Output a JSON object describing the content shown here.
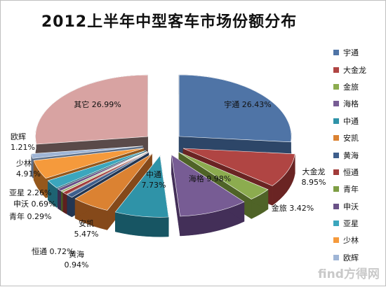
{
  "chart_data": {
    "type": "pie",
    "title": "2012上半年中型客车市场份额分布",
    "slices": [
      {
        "name": "宇通",
        "value": 26.43,
        "label_name": "宇通",
        "label_value": "26.43%",
        "color": "#4f74a6",
        "dark": "#2d4668"
      },
      {
        "name": "大金龙",
        "value": 8.95,
        "label_name": "大金龙",
        "label_value": "8.95%",
        "color": "#b04543",
        "dark": "#6a2423"
      },
      {
        "name": "金旅",
        "value": 3.42,
        "label_name": "金旅",
        "label_value": "3.42%",
        "color": "#8cac4f",
        "dark": "#4f6327"
      },
      {
        "name": "海格",
        "value": 9.98,
        "label_name": "海格",
        "label_value": "9.98%",
        "color": "#775c94",
        "dark": "#432f58"
      },
      {
        "name": "中通",
        "value": 7.73,
        "label_name": "中通",
        "label_value": "7.73%",
        "color": "#2f93a8",
        "dark": "#175563"
      },
      {
        "name": "安凯",
        "value": 5.47,
        "label_name": "安凯",
        "label_value": "5.47%",
        "color": "#db8232",
        "dark": "#85491a"
      },
      {
        "name": "黄海",
        "value": 0.94,
        "label_name": "黄海",
        "label_value": "0.94%",
        "color": "#3e5e8c",
        "dark": "#233652"
      },
      {
        "name": "恒通",
        "value": 0.72,
        "label_name": "恒通",
        "label_value": "0.72%",
        "color": "#a23c3a",
        "dark": "#5e1f1e"
      },
      {
        "name": "青年",
        "value": 0.29,
        "label_name": "青年",
        "label_value": "0.29%",
        "color": "#7e9e44",
        "dark": "#475c24"
      },
      {
        "name": "申沃",
        "value": 0.69,
        "label_name": "申沃",
        "label_value": "0.69%",
        "color": "#6a5287",
        "dark": "#3b2c4f"
      },
      {
        "name": "亚星",
        "value": 2.26,
        "label_name": "亚星",
        "label_value": "2.26%",
        "color": "#3ba6bd",
        "dark": "#1e6372"
      },
      {
        "name": "少林",
        "value": 4.91,
        "label_name": "少林",
        "label_value": "4.91%",
        "color": "#f59a3c",
        "dark": "#95581c"
      },
      {
        "name": "欧辉",
        "value": 1.21,
        "label_name": "欧辉",
        "label_value": "1.21%",
        "color": "#9fb5d6",
        "dark": "#5d6f88"
      },
      {
        "name": "其它",
        "value": 26.99,
        "label_name": "其它",
        "label_value": "26.99%",
        "color": "#d8a3a2",
        "dark": "#5a4a49"
      }
    ],
    "legend": [
      "宇通",
      "大金龙",
      "金旅",
      "海格",
      "中通",
      "安凯",
      "黄海",
      "恒通",
      "青年",
      "申沃",
      "亚星",
      "少林",
      "欧辉"
    ],
    "legend_placement": "right"
  },
  "watermark": "find方得网"
}
